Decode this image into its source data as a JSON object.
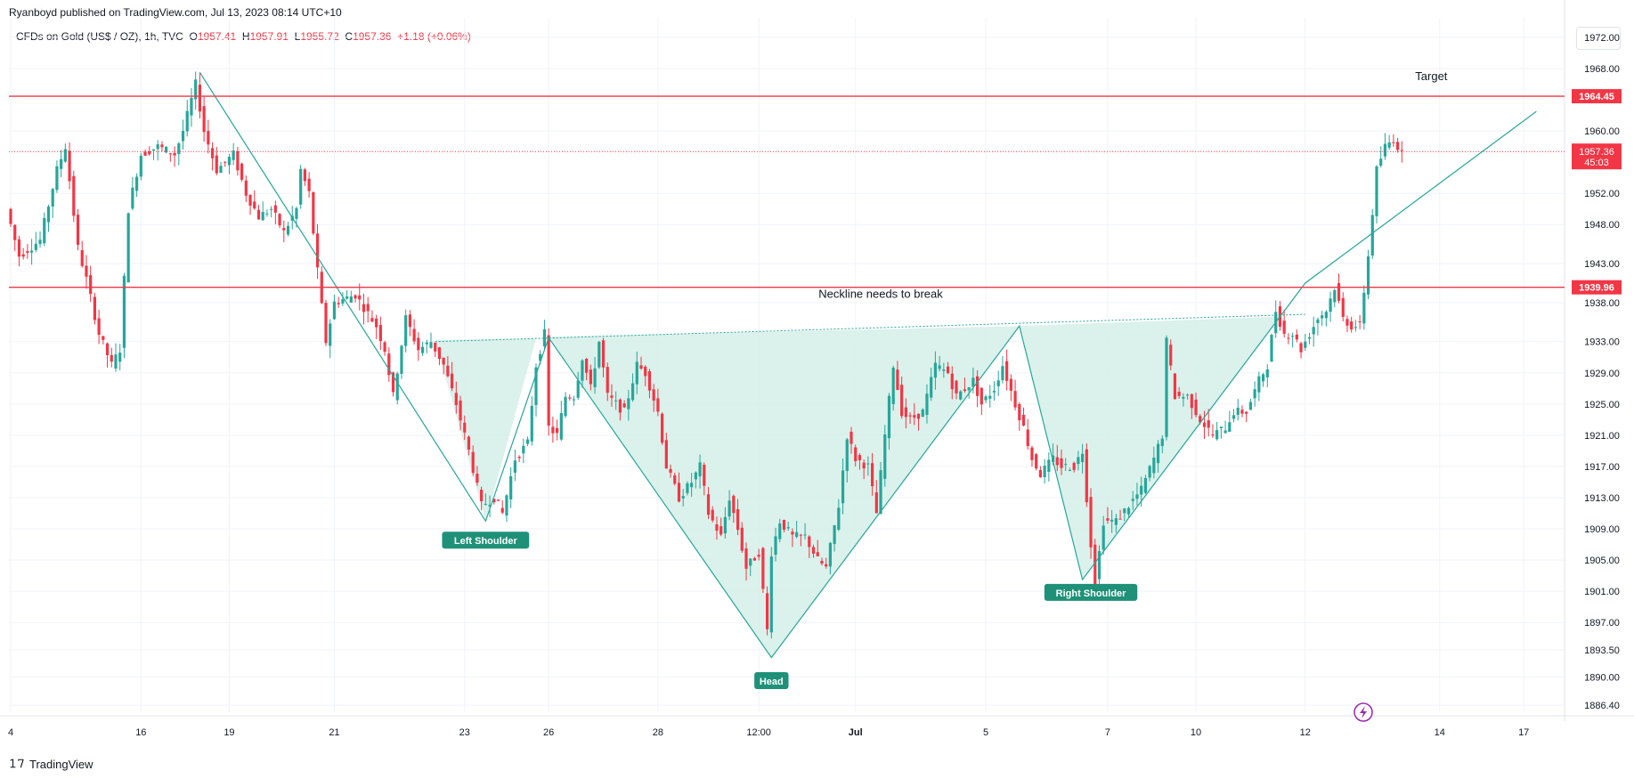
{
  "header": {
    "published": "Ryanboyd published on TradingView.com, Jul 13, 2023 08:14 UTC+10"
  },
  "symbol_bar": {
    "title": "CFDs on Gold (US$ / OZ), 1h, TVC",
    "open_label": "O",
    "open": "1957.41",
    "high_label": "H",
    "high": "1957.91",
    "low_label": "L",
    "low": "1955.72",
    "close_label": "C",
    "close": "1957.36",
    "change": "+1.18 (+0.06%)"
  },
  "footer": {
    "brand": "TradingView",
    "logo": "tradingview-logo-icon"
  },
  "colors": {
    "up": "#26a69a",
    "down": "#f23645",
    "line": "#f23645",
    "pattern": "#26a69a",
    "pattern_fill": "#d7efe9",
    "label_bg": "#1e9178",
    "text": "#131722",
    "grid": "#f0f3fa"
  },
  "chart_data": {
    "type": "candlestick",
    "title": "CFDs on Gold (US$ / OZ), 1h, TVC",
    "ylim": [
      1885.5,
      1974.5
    ],
    "y_ticks": [
      "1972.00",
      "1968.00",
      "1960.00",
      "1952.00",
      "1948.00",
      "1943.00",
      "1938.00",
      "1933.00",
      "1929.00",
      "1925.00",
      "1921.00",
      "1917.00",
      "1913.00",
      "1909.00",
      "1905.00",
      "1901.00",
      "1897.00",
      "1893.50",
      "1890.00",
      "1886.40"
    ],
    "y_tick_values": [
      1972.0,
      1968.0,
      1960.0,
      1952.0,
      1948.0,
      1943.0,
      1938.0,
      1933.0,
      1929.0,
      1925.0,
      1921.0,
      1917.0,
      1913.0,
      1909.0,
      1905.0,
      1901.0,
      1897.0,
      1893.5,
      1890.0,
      1886.4
    ],
    "x_ticks": [
      "4",
      "16",
      "19",
      "21",
      "23",
      "26",
      "28",
      "12:00",
      "Jul",
      "5",
      "7",
      "10",
      "12",
      "14",
      "17"
    ],
    "x_tick_bars": [
      0,
      31,
      52,
      77,
      108,
      128,
      154,
      178,
      201,
      232,
      261,
      282,
      308,
      340,
      360
    ],
    "price_lines": [
      {
        "name": "target",
        "price": 1964.45,
        "label": "1964.45"
      },
      {
        "name": "neckline-break",
        "price": 1939.96,
        "label": "1939.96"
      }
    ],
    "last_price": {
      "price": 1957.36,
      "label": "1957.36",
      "countdown": "45:03"
    },
    "annotations": [
      {
        "name": "target-label",
        "text": "Target",
        "bar": 338,
        "price": 1966.5
      },
      {
        "name": "neckline-label",
        "text": "Neckline needs to break",
        "bar": 207,
        "price": 1938.6
      }
    ],
    "badges": [
      {
        "name": "left-shoulder-badge",
        "text": "Left Shoulder",
        "bar": 113,
        "price": 1907.5
      },
      {
        "name": "head-badge",
        "text": "Head",
        "bar": 181,
        "price": 1889.5
      },
      {
        "name": "right-shoulder-badge",
        "text": "Right Shoulder",
        "bar": 257,
        "price": 1900.8
      }
    ],
    "pattern_polyline": [
      [
        45,
        1967.5
      ],
      [
        113,
        1910.0
      ],
      [
        128,
        1933.5
      ],
      [
        181,
        1892.5
      ],
      [
        240,
        1935.0
      ],
      [
        255,
        1902.5
      ],
      [
        308,
        1940.5
      ],
      [
        363,
        1962.5
      ]
    ],
    "neckline_dotted": [
      [
        101,
        1933.0
      ],
      [
        308,
        1936.5
      ]
    ],
    "candles_ohlc": []
  }
}
